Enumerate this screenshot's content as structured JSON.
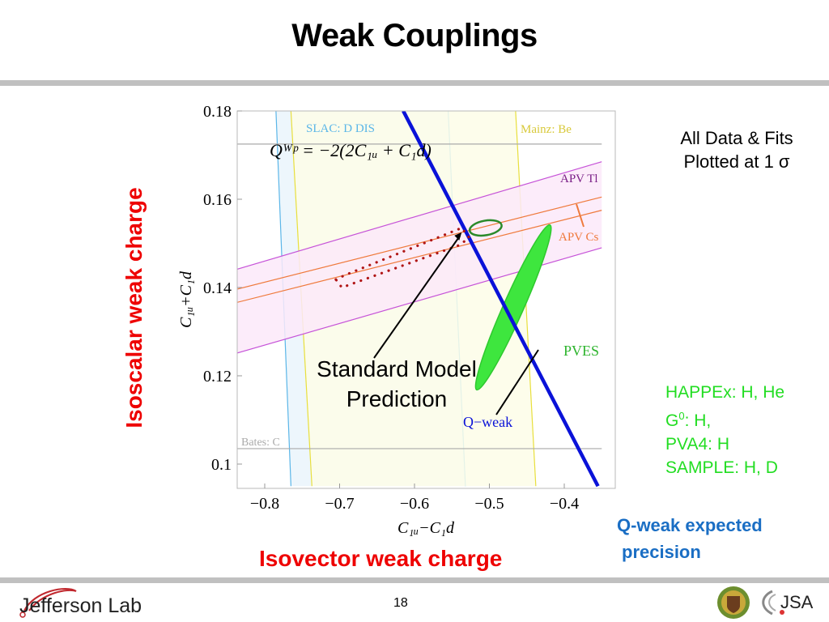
{
  "slide": {
    "title": "Weak Couplings",
    "page_number": "18",
    "note_line1": "All Data & Fits",
    "note_line2": "Plotted at 1 σ",
    "pves_experiments": [
      {
        "name": "HAPPEx",
        "targets": "H, He"
      },
      {
        "name": "G",
        "sup": "0",
        "targets": "H,"
      },
      {
        "name": "PVA4",
        "targets": "H"
      },
      {
        "name": "SAMPLE",
        "targets": "H, D"
      }
    ],
    "qweak_note_line1": "Q-weak expected",
    "qweak_note_line2": "precision",
    "isoscalar_label": "Isoscalar weak charge",
    "isovector_label": "Isovector weak charge",
    "sm_label_line1": "Standard Model",
    "sm_label_line2": "Prediction",
    "footer_logo_text": "Jefferson Lab",
    "footer_logo_right_text": "JSA",
    "colors": {
      "red_label": "#ee0000",
      "green_list": "#22dd22",
      "qweak_note": "#1a6ec4",
      "bar_gray": "#c0c0c0"
    }
  },
  "chart_data": {
    "type": "scatter",
    "title": "",
    "xlabel": "C1u−C1d",
    "ylabel": "C1u+C1d",
    "xlim": [
      -0.84,
      -0.35
    ],
    "ylim": [
      0.095,
      0.18
    ],
    "x_ticks": [
      -0.8,
      -0.7,
      -0.6,
      -0.5,
      -0.4
    ],
    "x_tick_labels": [
      "−0.8",
      "−0.7",
      "−0.6",
      "−0.5",
      "−0.4"
    ],
    "y_ticks": [
      0.1,
      0.12,
      0.14,
      0.16,
      0.18
    ],
    "y_tick_labels": [
      "0.1",
      "0.12",
      "0.14",
      "0.16",
      "0.18"
    ],
    "grid": false,
    "formula": "Q_W^p = −2(2C_1u + C_1d)",
    "bands": [
      {
        "name": "SLAC: D DIS",
        "color": "#5bb6e8",
        "fill": "#eaf4fc",
        "edges": [
          [
            [
              -0.785,
              0.18
            ],
            [
              -0.765,
              0.095
            ]
          ],
          [
            [
              -0.555,
              0.18
            ],
            [
              -0.532,
              0.095
            ]
          ]
        ]
      },
      {
        "name": "Mainz: Be",
        "color": "#e8df3c",
        "fill": "#fdfde8",
        "edges": [
          [
            [
              -0.765,
              0.18
            ],
            [
              -0.737,
              0.095
            ]
          ],
          [
            [
              -0.465,
              0.18
            ],
            [
              -0.438,
              0.095
            ]
          ]
        ]
      },
      {
        "name": "APV Tl",
        "color": "#c653d8",
        "fill": "#fbe9f9",
        "edges": [
          [
            [
              -0.84,
              0.144
            ],
            [
              -0.35,
              0.1685
            ]
          ],
          [
            [
              -0.84,
              0.125
            ],
            [
              -0.35,
              0.149
            ]
          ]
        ]
      },
      {
        "name": "APV Cs",
        "color": "#ef7a3c",
        "fill": "none",
        "edges": [
          [
            [
              -0.84,
              0.1395
            ],
            [
              -0.35,
              0.1605
            ]
          ],
          [
            [
              -0.84,
              0.1365
            ],
            [
              -0.35,
              0.1575
            ]
          ]
        ]
      },
      {
        "name": "Bates: C",
        "color": "#aaaaaa",
        "fill": "none",
        "edges": [
          [
            [
              -0.84,
              0.1035
            ],
            [
              -0.35,
              0.1035
            ]
          ],
          [
            [
              -0.84,
              0.1725
            ],
            [
              -0.35,
              0.1725
            ]
          ]
        ]
      }
    ],
    "qweak_line": {
      "name": "Q−weak",
      "color": "#0a12d8",
      "points": [
        [
          -0.615,
          0.18
        ],
        [
          -0.355,
          0.095
        ]
      ]
    },
    "pves_ellipse": {
      "name": "PVES",
      "color": "#2ec82e",
      "fill": "#3ee63e",
      "center": [
        -0.468,
        0.1355
      ],
      "semi_major": 0.0405,
      "semi_minor": 0.0065,
      "angle_deg": -66
    },
    "combined_fit_ellipse": {
      "color": "#2a8a2a",
      "center": [
        -0.505,
        0.1535
      ],
      "rx": 0.021,
      "ry": 0.0018,
      "angle_deg": 10
    },
    "sm_prediction": {
      "name": "Standard Model Prediction",
      "point": [
        -0.537,
        0.1525
      ]
    },
    "apv_dotted_fit": {
      "color": "#b01515",
      "points": [
        [
          -0.705,
          0.1418
        ],
        [
          -0.693,
          0.1428
        ],
        [
          -0.537,
          0.1535
        ],
        [
          -0.527,
          0.1513
        ],
        [
          -0.54,
          0.1496
        ],
        [
          -0.697,
          0.14
        ],
        [
          -0.705,
          0.1418
        ]
      ]
    }
  }
}
